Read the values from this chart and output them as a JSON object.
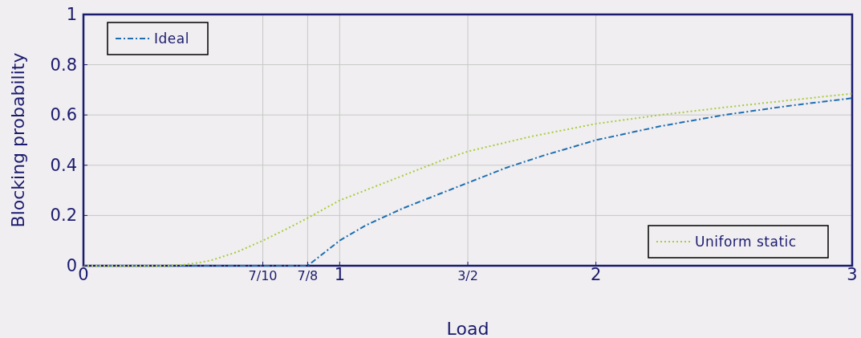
{
  "chart_data": {
    "type": "line",
    "xlabel": "Load",
    "ylabel": "Blocking probability",
    "xlim": [
      0,
      3
    ],
    "ylim": [
      0,
      1
    ],
    "xticks": [
      0,
      {
        "value": 0.7,
        "label": "7/10"
      },
      {
        "value": 0.875,
        "label": "7/8"
      },
      1,
      {
        "value": 1.5,
        "label": "3/2"
      },
      2,
      3
    ],
    "yticks": [
      0,
      0.2,
      0.4,
      0.6,
      0.8,
      1
    ],
    "grid": true,
    "marker": "none",
    "legend": "top left",
    "series": [
      {
        "name": "Ideal",
        "color": "#1f6fb0",
        "line_style": "dashdot",
        "x": [
          0,
          0.875,
          0.95,
          1,
          1.1,
          1.25,
          1.4,
          1.5,
          1.65,
          1.8,
          2,
          2.25,
          2.5,
          2.75,
          3
        ],
        "values": [
          0,
          0,
          0.06,
          0.1,
          0.16,
          0.23,
          0.29,
          0.33,
          0.39,
          0.44,
          0.5,
          0.555,
          0.6,
          0.636,
          0.667
        ]
      },
      {
        "name": "Uniform static",
        "color": "#a8cc3c",
        "line_style": "dotted",
        "x": [
          0,
          0.3,
          0.375,
          0.45,
          0.5,
          0.6,
          0.7,
          0.8,
          0.875,
          1,
          1.1,
          1.25,
          1.4,
          1.5,
          1.75,
          2,
          2.25,
          2.5,
          2.75,
          3
        ],
        "values": [
          0,
          0,
          0.002,
          0.012,
          0.022,
          0.055,
          0.1,
          0.15,
          0.19,
          0.26,
          0.3,
          0.36,
          0.42,
          0.455,
          0.515,
          0.565,
          0.6,
          0.63,
          0.658,
          0.685
        ]
      }
    ]
  }
}
